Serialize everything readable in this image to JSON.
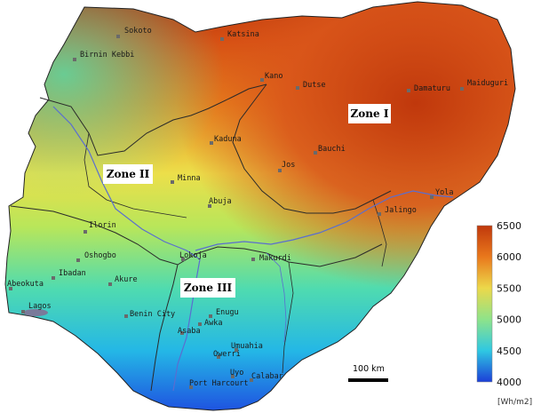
{
  "map": {
    "zones": [
      {
        "id": "zone-1",
        "label": "Zone I"
      },
      {
        "id": "zone-2",
        "label": "Zone II"
      },
      {
        "id": "zone-3",
        "label": "Zone III"
      }
    ],
    "cities": [
      {
        "id": "sokoto",
        "name": "Sokoto"
      },
      {
        "id": "katsina",
        "name": "Katsina"
      },
      {
        "id": "birnin-kebbi",
        "name": "Birnin Kebbi"
      },
      {
        "id": "kano",
        "name": "Kano"
      },
      {
        "id": "dutse",
        "name": "Dutse"
      },
      {
        "id": "damaturu",
        "name": "Damaturu"
      },
      {
        "id": "maiduguri",
        "name": "Maiduguri"
      },
      {
        "id": "kaduna",
        "name": "Kaduna"
      },
      {
        "id": "bauchi",
        "name": "Bauchi"
      },
      {
        "id": "jos",
        "name": "Jos"
      },
      {
        "id": "minna",
        "name": "Minna"
      },
      {
        "id": "abuja",
        "name": "Abuja"
      },
      {
        "id": "yola",
        "name": "Yola"
      },
      {
        "id": "jalingo",
        "name": "Jalingo"
      },
      {
        "id": "ilorin",
        "name": "Ilorin"
      },
      {
        "id": "oshogbo",
        "name": "Oshogbo"
      },
      {
        "id": "lokoja",
        "name": "Lokoja"
      },
      {
        "id": "makurdi",
        "name": "Makurdi"
      },
      {
        "id": "ibadan",
        "name": "Ibadan"
      },
      {
        "id": "abeokuta",
        "name": "Abeokuta"
      },
      {
        "id": "akure",
        "name": "Akure"
      },
      {
        "id": "lagos",
        "name": "Lagos"
      },
      {
        "id": "benin-city",
        "name": "Benin City"
      },
      {
        "id": "enugu",
        "name": "Enugu"
      },
      {
        "id": "awka",
        "name": "Awka"
      },
      {
        "id": "asaba",
        "name": "Asaba"
      },
      {
        "id": "umuahia",
        "name": "Umuahia"
      },
      {
        "id": "owerri",
        "name": "Owerri"
      },
      {
        "id": "uyo",
        "name": "Uyo"
      },
      {
        "id": "calabar",
        "name": "Calabar"
      },
      {
        "id": "port-harcourt",
        "name": "Port Harcourt"
      }
    ],
    "scale_bar": {
      "label": "100 km"
    }
  },
  "legend": {
    "ticks": [
      "6500",
      "6000",
      "5500",
      "5000",
      "4500",
      "4000"
    ],
    "unit": "[Wh/m2]",
    "range": [
      4000,
      6500
    ]
  },
  "colors": {
    "high": "#c53a0c",
    "upper": "#e98a1e",
    "mid": "#ecdf4a",
    "midlow": "#8fe08a",
    "low": "#2fd8d0",
    "lowest": "#1e5fe6",
    "water": "#6b7fd8",
    "boundary": "#2a2a2a"
  }
}
